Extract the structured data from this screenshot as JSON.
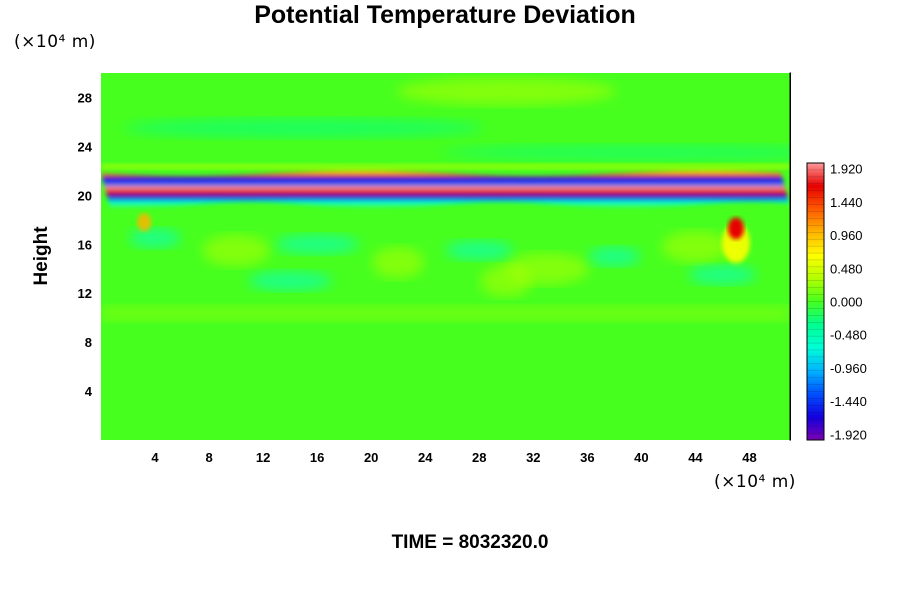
{
  "chart_data": {
    "type": "heatmap",
    "title": "Potential Temperature Deviation",
    "ylabel": "Height",
    "x_unit_label": "(×10⁴ m)",
    "y_unit_label": "(×10⁴ m)",
    "xlim": [
      0,
      51
    ],
    "ylim": [
      0,
      30
    ],
    "x_ticks": [
      4,
      8,
      12,
      16,
      20,
      24,
      28,
      32,
      36,
      40,
      44,
      48
    ],
    "y_ticks": [
      4,
      8,
      12,
      16,
      20,
      24,
      28
    ],
    "colorbar": {
      "min": -2.0,
      "max": 2.0,
      "labels": [
        "1.920",
        "1.440",
        "0.960",
        "0.480",
        "0.000",
        "-0.480",
        "-0.960",
        "-1.440",
        "-1.920"
      ],
      "stops": [
        "#7a00b0",
        "#1400e0",
        "#0050ff",
        "#00b4ff",
        "#00ffd8",
        "#00ff90",
        "#46ff1e",
        "#b4ff00",
        "#ffff00",
        "#ffb400",
        "#ff5a00",
        "#e60000",
        "#ff9a9a"
      ]
    },
    "features": [
      {
        "name": "layer-band",
        "y_center": 20.5,
        "description_values": {
          "min": -1.92,
          "max": 1.92
        }
      },
      {
        "name": "peak-right",
        "x": 47,
        "y": 17.3,
        "value": 1.9
      },
      {
        "name": "peak-left",
        "x": 3.2,
        "y": 17.8,
        "value": 0.9
      }
    ]
  },
  "footer": {
    "time_label": "TIME = 8032320.0"
  }
}
